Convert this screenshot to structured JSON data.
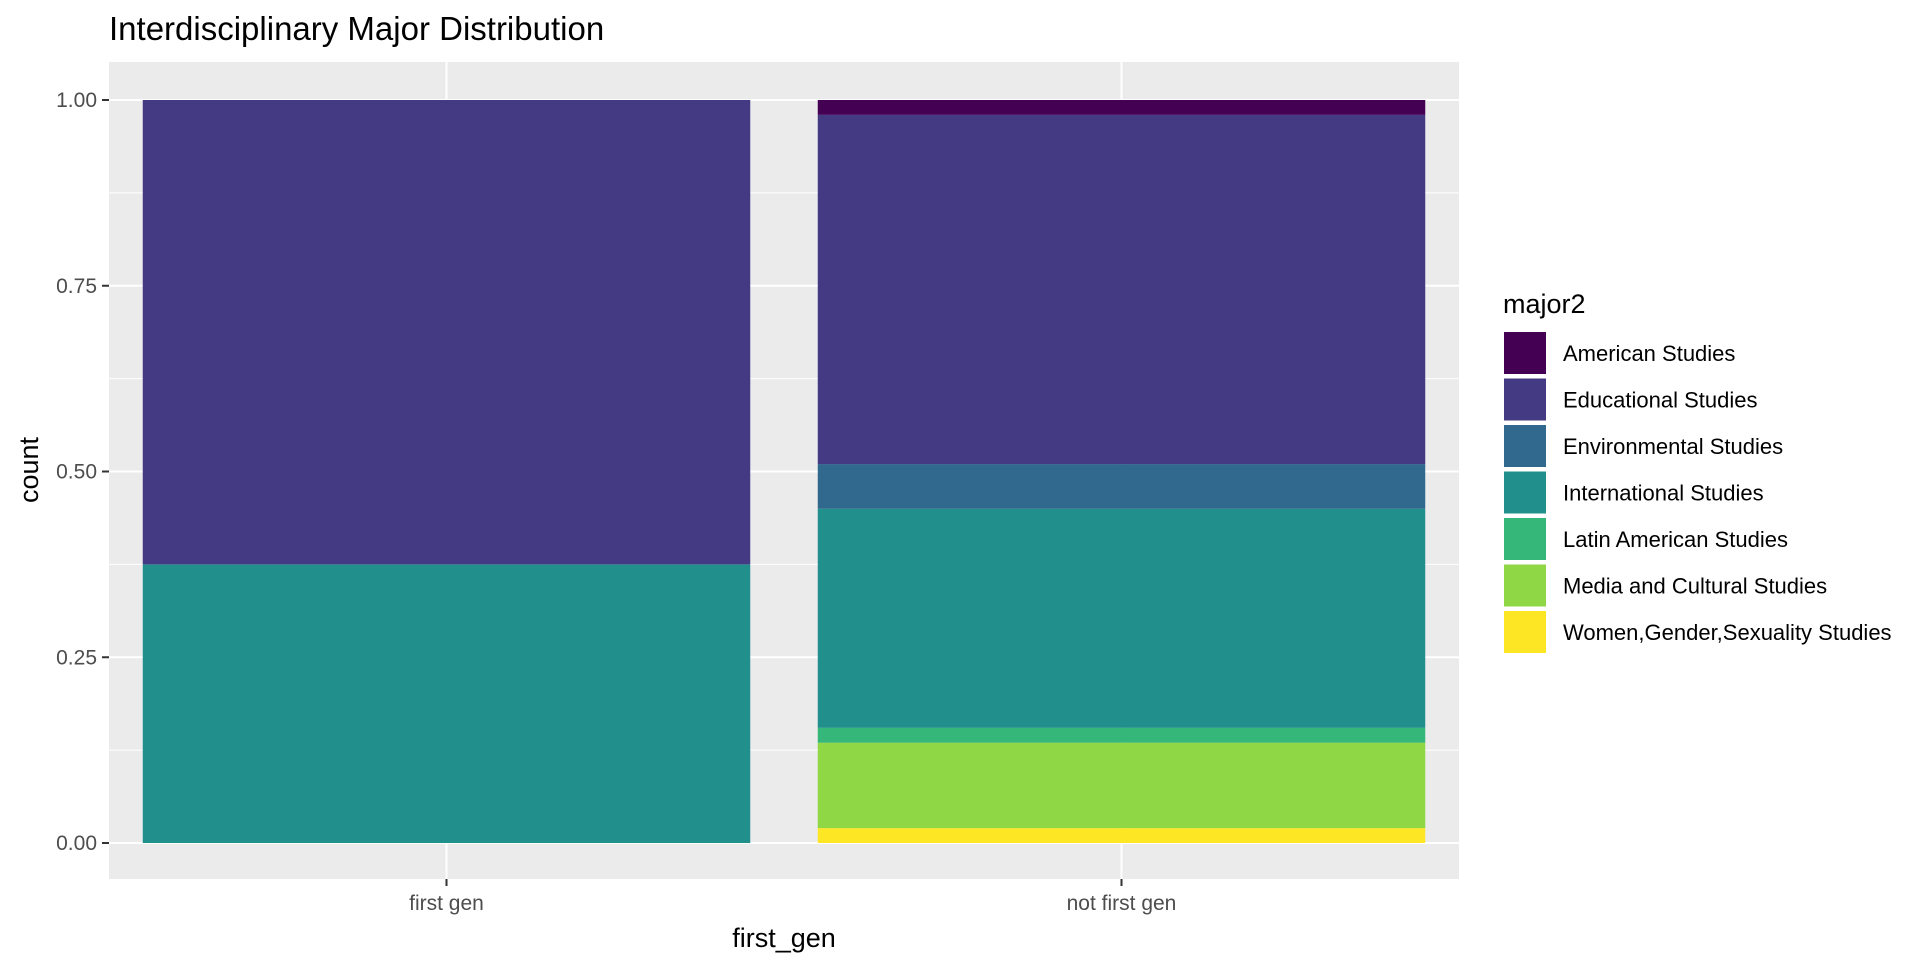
{
  "chart_data": {
    "type": "bar",
    "stacked": true,
    "title": "Interdisciplinary Major Distribution",
    "xlabel": "first_gen",
    "ylabel": "count",
    "categories": [
      "first gen",
      "not first gen"
    ],
    "ylim": [
      0,
      1
    ],
    "yticks": [
      "0.00",
      "0.25",
      "0.50",
      "0.75",
      "1.00"
    ],
    "ytick_values": [
      0,
      0.25,
      0.5,
      0.75,
      1.0
    ],
    "grid": true,
    "legend_title": "major2",
    "legend_position": "right",
    "series": [
      {
        "name": "American Studies",
        "color": "#440154",
        "values": [
          0,
          0.02
        ]
      },
      {
        "name": "Educational Studies",
        "color": "#443A83",
        "values": [
          0.625,
          0.47
        ]
      },
      {
        "name": "Environmental Studies",
        "color": "#31688E",
        "values": [
          0,
          0.06
        ]
      },
      {
        "name": "International Studies",
        "color": "#21908C",
        "values": [
          0.375,
          0.295
        ]
      },
      {
        "name": "Latin American Studies",
        "color": "#35B779",
        "values": [
          0,
          0.02
        ]
      },
      {
        "name": "Media and Cultural Studies",
        "color": "#8FD744",
        "values": [
          0,
          0.115
        ]
      },
      {
        "name": "Women,Gender,Sexuality Studies",
        "color": "#FDE725",
        "values": [
          0,
          0.02
        ]
      }
    ]
  }
}
